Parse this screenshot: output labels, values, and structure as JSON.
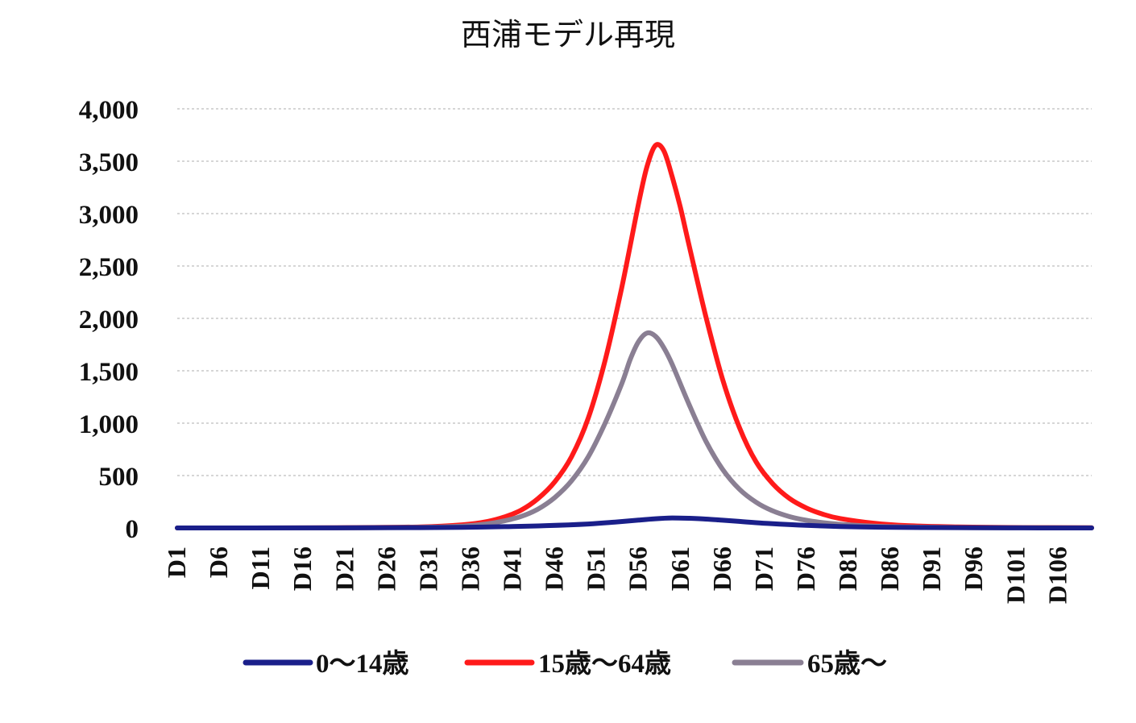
{
  "chart_data": {
    "type": "line",
    "title": "西浦モデル再現",
    "xlabel": "",
    "ylabel": "",
    "ylim": [
      0,
      4000
    ],
    "y_ticks": [
      "0",
      "500",
      "1,000",
      "1,500",
      "2,000",
      "2,500",
      "3,000",
      "3,500",
      "4,000"
    ],
    "y_tick_values": [
      0,
      500,
      1000,
      1500,
      2000,
      2500,
      3000,
      3500,
      4000
    ],
    "x_tick_labels": [
      "D1",
      "D6",
      "D11",
      "D16",
      "D21",
      "D26",
      "D31",
      "D36",
      "D41",
      "D46",
      "D51",
      "D56",
      "D61",
      "D66",
      "D71",
      "D76",
      "D81",
      "D86",
      "D91",
      "D96",
      "D101",
      "D106"
    ],
    "x_range": [
      1,
      110
    ],
    "grid": true,
    "legend_position": "bottom",
    "series": [
      {
        "name": "0～14歳",
        "color": "#1a1f8a",
        "x": [
          1,
          10,
          20,
          30,
          35,
          40,
          45,
          50,
          53,
          56,
          58,
          60,
          62,
          64,
          66,
          68,
          70,
          72,
          75,
          80,
          85,
          90,
          100,
          110
        ],
        "values": [
          0,
          0,
          1,
          3,
          6,
          12,
          22,
          38,
          55,
          75,
          88,
          95,
          92,
          85,
          74,
          62,
          50,
          40,
          28,
          14,
          7,
          4,
          1,
          0
        ]
      },
      {
        "name": "15歳～64歳",
        "color": "#ff1a1a",
        "x": [
          1,
          10,
          20,
          30,
          35,
          38,
          40,
          42,
          44,
          46,
          48,
          50,
          52,
          54,
          56,
          57,
          58,
          59,
          60,
          61,
          62,
          64,
          66,
          68,
          70,
          72,
          74,
          76,
          78,
          80,
          84,
          88,
          94,
          100,
          110
        ],
        "values": [
          0,
          0,
          2,
          10,
          30,
          62,
          105,
          170,
          280,
          440,
          680,
          1050,
          1600,
          2300,
          3100,
          3450,
          3650,
          3600,
          3350,
          3050,
          2700,
          2020,
          1420,
          960,
          630,
          420,
          280,
          190,
          130,
          90,
          45,
          22,
          10,
          5,
          2
        ]
      },
      {
        "name": "65歳～",
        "color": "#8a7f93",
        "x": [
          1,
          10,
          20,
          30,
          35,
          38,
          40,
          42,
          44,
          46,
          48,
          50,
          52,
          54,
          55,
          56,
          57,
          58,
          59,
          60,
          62,
          64,
          66,
          68,
          70,
          72,
          74,
          76,
          78,
          80,
          84,
          88,
          94,
          100,
          110
        ],
        "values": [
          0,
          0,
          1,
          6,
          18,
          40,
          68,
          110,
          180,
          290,
          450,
          680,
          1000,
          1380,
          1610,
          1780,
          1860,
          1830,
          1720,
          1560,
          1180,
          830,
          560,
          370,
          245,
          162,
          108,
          73,
          50,
          35,
          17,
          9,
          4,
          2,
          1
        ]
      }
    ]
  }
}
